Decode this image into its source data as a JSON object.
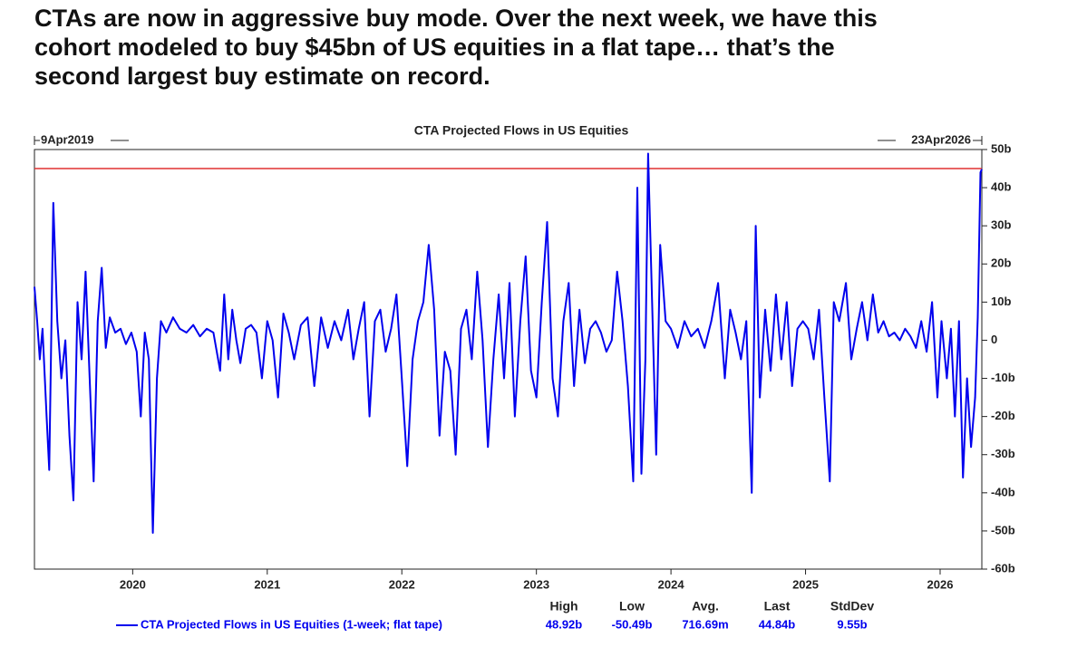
{
  "heading": [
    "CTAs are now in aggressive buy mode. Over the next week, we have this",
    "cohort modeled to buy $45bn of US equities in a flat tape… that’s the",
    "second largest buy estimate on record."
  ],
  "chart_data": {
    "type": "line",
    "title": "CTA Projected Flows in US Equities",
    "start_label": "9Apr2019",
    "end_label": "23Apr2026",
    "xlim": [
      2019.27,
      2026.31
    ],
    "xticks": [
      2020,
      2021,
      2022,
      2023,
      2024,
      2025,
      2026
    ],
    "ylim": [
      -60,
      50
    ],
    "yticks": [
      {
        "value": 50,
        "label": "50b"
      },
      {
        "value": 40,
        "label": "40b"
      },
      {
        "value": 30,
        "label": "30b"
      },
      {
        "value": 20,
        "label": "20b"
      },
      {
        "value": 10,
        "label": "10b"
      },
      0,
      {
        "value": -10,
        "label": "-10b"
      },
      {
        "value": -20,
        "label": "-20b"
      },
      {
        "value": -30,
        "label": "-30b"
      },
      {
        "value": -40,
        "label": "-40b"
      },
      {
        "value": -50,
        "label": "-50b"
      },
      {
        "value": -60,
        "label": "-60b"
      }
    ],
    "reference_line": {
      "value": 45,
      "color": "#e03030"
    },
    "stats": [
      {
        "name": "High",
        "value": "48.92b"
      },
      {
        "name": "Low",
        "value": "-50.49b"
      },
      {
        "name": "Avg.",
        "value": "716.69m"
      },
      {
        "name": "Last",
        "value": "44.84b"
      },
      {
        "name": "StdDev",
        "value": "9.55b"
      }
    ],
    "series": [
      {
        "name": "CTA Projected Flows in US Equities (1-week; flat tape)",
        "color": "#0000ee",
        "x": [
          2019.27,
          2019.29,
          2019.31,
          2019.33,
          2019.36,
          2019.38,
          2019.41,
          2019.44,
          2019.47,
          2019.5,
          2019.53,
          2019.56,
          2019.59,
          2019.62,
          2019.65,
          2019.68,
          2019.71,
          2019.74,
          2019.77,
          2019.8,
          2019.83,
          2019.87,
          2019.91,
          2019.95,
          2019.99,
          2020.03,
          2020.06,
          2020.09,
          2020.12,
          2020.15,
          2020.18,
          2020.21,
          2020.25,
          2020.3,
          2020.35,
          2020.4,
          2020.45,
          2020.5,
          2020.55,
          2020.6,
          2020.65,
          2020.68,
          2020.71,
          2020.74,
          2020.77,
          2020.8,
          2020.84,
          2020.88,
          2020.92,
          2020.96,
          2021.0,
          2021.04,
          2021.08,
          2021.12,
          2021.16,
          2021.2,
          2021.25,
          2021.3,
          2021.35,
          2021.4,
          2021.45,
          2021.5,
          2021.55,
          2021.6,
          2021.64,
          2021.68,
          2021.72,
          2021.76,
          2021.8,
          2021.84,
          2021.88,
          2021.92,
          2021.96,
          2022.0,
          2022.04,
          2022.08,
          2022.12,
          2022.16,
          2022.2,
          2022.24,
          2022.28,
          2022.32,
          2022.36,
          2022.4,
          2022.44,
          2022.48,
          2022.52,
          2022.56,
          2022.6,
          2022.64,
          2022.68,
          2022.72,
          2022.76,
          2022.8,
          2022.84,
          2022.88,
          2022.92,
          2022.96,
          2023.0,
          2023.04,
          2023.08,
          2023.12,
          2023.16,
          2023.2,
          2023.24,
          2023.28,
          2023.32,
          2023.36,
          2023.4,
          2023.44,
          2023.48,
          2023.52,
          2023.56,
          2023.6,
          2023.64,
          2023.68,
          2023.72,
          2023.75,
          2023.78,
          2023.81,
          2023.83,
          2023.86,
          2023.89,
          2023.92,
          2023.96,
          2024.0,
          2024.05,
          2024.1,
          2024.15,
          2024.2,
          2024.25,
          2024.3,
          2024.35,
          2024.4,
          2024.44,
          2024.48,
          2024.52,
          2024.56,
          2024.6,
          2024.63,
          2024.66,
          2024.7,
          2024.74,
          2024.78,
          2024.82,
          2024.86,
          2024.9,
          2024.94,
          2024.98,
          2025.02,
          2025.06,
          2025.1,
          2025.14,
          2025.18,
          2025.21,
          2025.25,
          2025.3,
          2025.34,
          2025.38,
          2025.42,
          2025.46,
          2025.5,
          2025.54,
          2025.58,
          2025.62,
          2025.66,
          2025.7,
          2025.74,
          2025.78,
          2025.82,
          2025.86,
          2025.9,
          2025.94,
          2025.98,
          2026.01,
          2026.05,
          2026.08,
          2026.11,
          2026.14,
          2026.17,
          2026.2,
          2026.23,
          2026.26,
          2026.28,
          2026.3,
          2026.31
        ],
        "values": [
          14,
          5,
          -5,
          3,
          -20,
          -34,
          36,
          5,
          -10,
          0,
          -25,
          -42,
          10,
          -5,
          18,
          -10,
          -37,
          5,
          19,
          -2,
          6,
          2,
          3,
          -1,
          2,
          -3,
          -20,
          2,
          -5,
          -50.49,
          -10,
          5,
          2,
          6,
          3,
          2,
          4,
          1,
          3,
          2,
          -8,
          12,
          -5,
          8,
          0,
          -6,
          3,
          4,
          2,
          -10,
          5,
          0,
          -15,
          7,
          2,
          -5,
          4,
          6,
          -12,
          6,
          -2,
          5,
          0,
          8,
          -5,
          3,
          10,
          -20,
          5,
          8,
          -3,
          3,
          12,
          -10,
          -33,
          -5,
          5,
          10,
          25,
          8,
          -25,
          -3,
          -8,
          -30,
          3,
          8,
          -5,
          18,
          0,
          -28,
          -5,
          12,
          -10,
          15,
          -20,
          5,
          22,
          -8,
          -15,
          10,
          31,
          -10,
          -20,
          5,
          15,
          -12,
          8,
          -6,
          3,
          5,
          2,
          -3,
          0,
          18,
          5,
          -12,
          -37,
          40,
          -35,
          -5,
          48.92,
          10,
          -30,
          25,
          5,
          3,
          -2,
          5,
          1,
          3,
          -2,
          5,
          15,
          -10,
          8,
          2,
          -5,
          5,
          -40,
          30,
          -15,
          8,
          -8,
          12,
          -5,
          10,
          -12,
          3,
          5,
          3,
          -5,
          8,
          -15,
          -37,
          10,
          5,
          15,
          -5,
          3,
          10,
          0,
          12,
          2,
          5,
          1,
          2,
          0,
          3,
          1,
          -2,
          5,
          -3,
          10,
          -15,
          5,
          -10,
          3,
          -20,
          5,
          -36,
          -10,
          -28,
          -15,
          6,
          44,
          44.84
        ]
      }
    ]
  }
}
